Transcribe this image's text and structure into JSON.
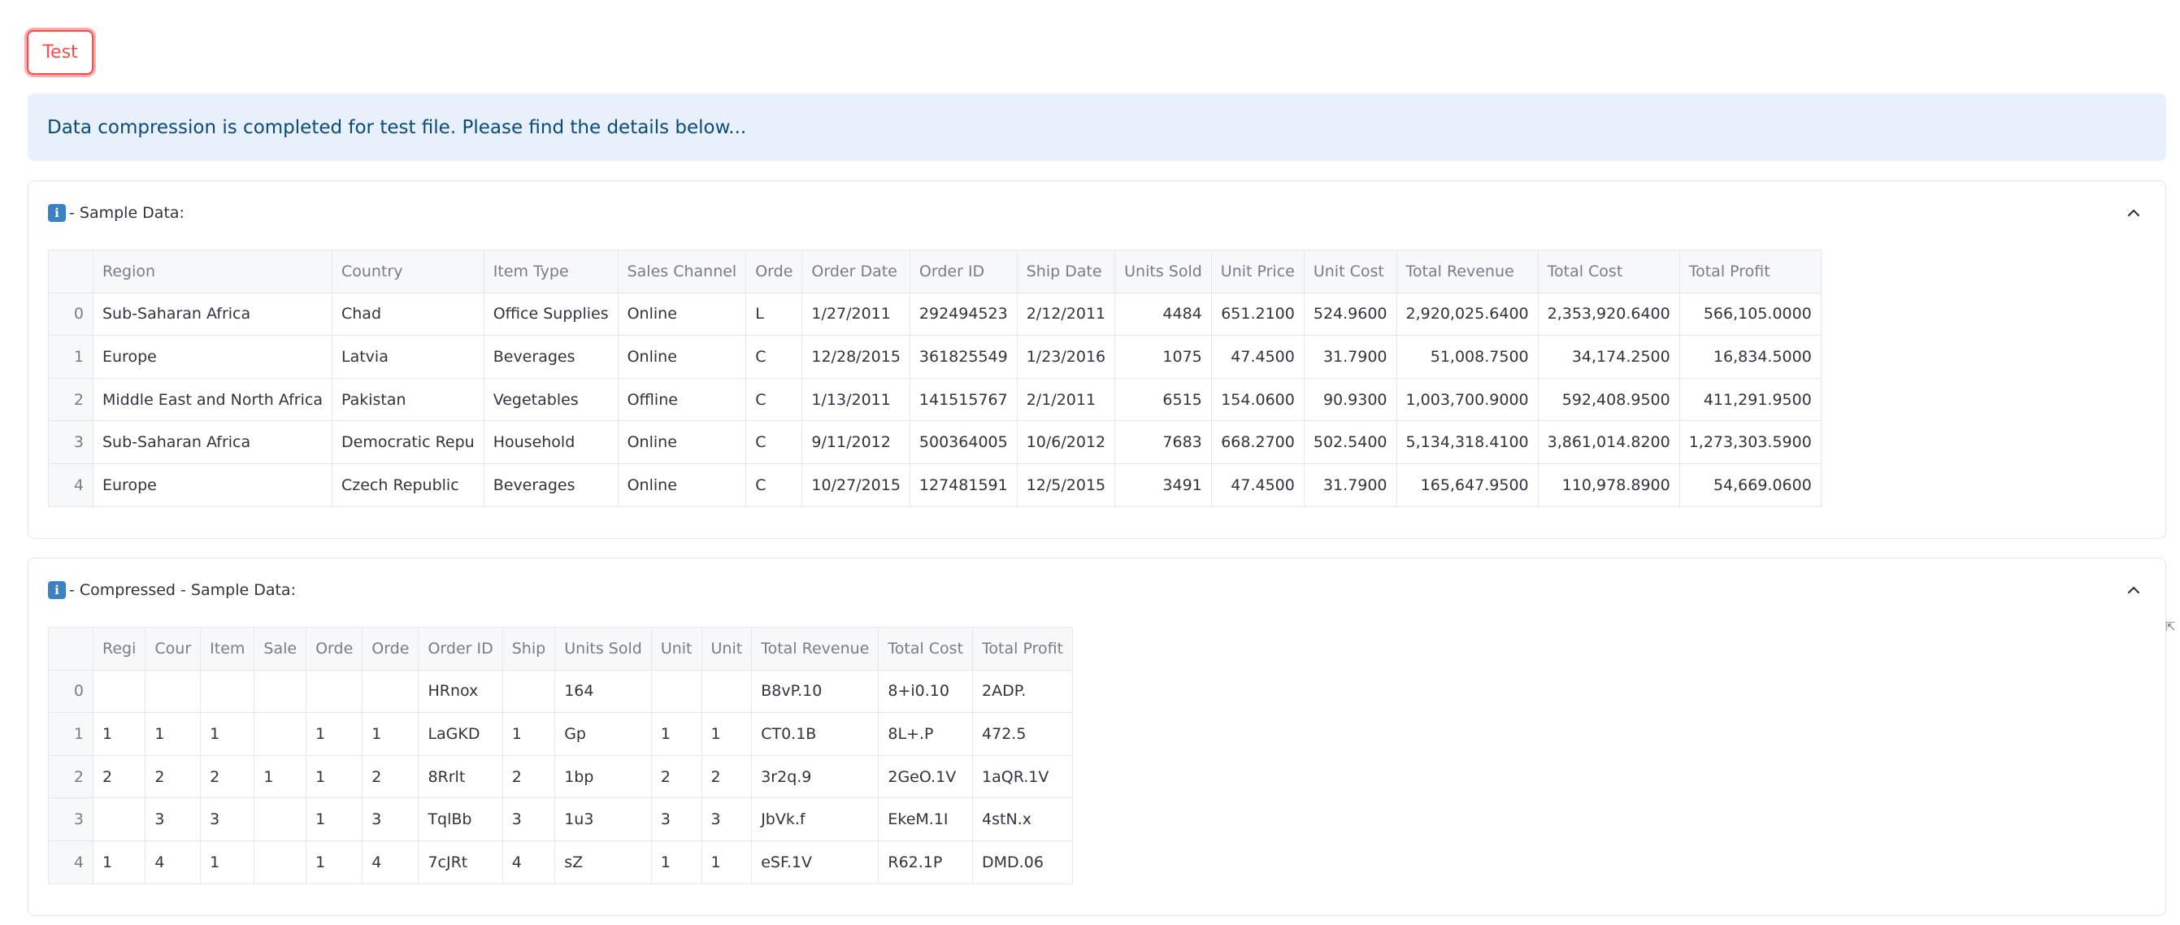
{
  "button": {
    "label": "Test"
  },
  "info": {
    "message": "Data compression is completed for test file. Please find the details below..."
  },
  "sample": {
    "title": "- Sample Data:",
    "columns": [
      "",
      "Region",
      "Country",
      "Item Type",
      "Sales Channel",
      "Orde",
      "Order Date",
      "Order ID",
      "Ship Date",
      "Units Sold",
      "Unit Price",
      "Unit Cost",
      "Total Revenue",
      "Total Cost",
      "Total Profit"
    ],
    "rows": [
      [
        "0",
        "Sub-Saharan Africa",
        "Chad",
        "Office Supplies",
        "Online",
        "L",
        "1/27/2011",
        "292494523",
        "2/12/2011",
        "4484",
        "651.2100",
        "524.9600",
        "2,920,025.6400",
        "2,353,920.6400",
        "566,105.0000"
      ],
      [
        "1",
        "Europe",
        "Latvia",
        "Beverages",
        "Online",
        "C",
        "12/28/2015",
        "361825549",
        "1/23/2016",
        "1075",
        "47.4500",
        "31.7900",
        "51,008.7500",
        "34,174.2500",
        "16,834.5000"
      ],
      [
        "2",
        "Middle East and North Africa",
        "Pakistan",
        "Vegetables",
        "Offline",
        "C",
        "1/13/2011",
        "141515767",
        "2/1/2011",
        "6515",
        "154.0600",
        "90.9300",
        "1,003,700.9000",
        "592,408.9500",
        "411,291.9500"
      ],
      [
        "3",
        "Sub-Saharan Africa",
        "Democratic Repu",
        "Household",
        "Online",
        "C",
        "9/11/2012",
        "500364005",
        "10/6/2012",
        "7683",
        "668.2700",
        "502.5400",
        "5,134,318.4100",
        "3,861,014.8200",
        "1,273,303.5900"
      ],
      [
        "4",
        "Europe",
        "Czech Republic",
        "Beverages",
        "Online",
        "C",
        "10/27/2015",
        "127481591",
        "12/5/2015",
        "3491",
        "47.4500",
        "31.7900",
        "165,647.9500",
        "110,978.8900",
        "54,669.0600"
      ]
    ]
  },
  "compressed": {
    "title": "- Compressed - Sample Data:",
    "columns": [
      "",
      "Regi",
      "Cour",
      "Item",
      "Sale",
      "Orde",
      "Orde",
      "Order ID",
      "Ship",
      "Units Sold",
      "Unit",
      "Unit",
      "Total Revenue",
      "Total Cost",
      "Total Profit"
    ],
    "rows": [
      [
        "0",
        "",
        "",
        "",
        "",
        "",
        "",
        "HRnox",
        "",
        "164",
        "",
        "",
        "B8vP.10",
        "8+i0.10",
        "2ADP."
      ],
      [
        "1",
        "1",
        "1",
        "1",
        "",
        "1",
        "1",
        "LaGKD",
        "1",
        "Gp",
        "1",
        "1",
        "CT0.1B",
        "8L+.P",
        "472.5"
      ],
      [
        "2",
        "2",
        "2",
        "2",
        "1",
        "1",
        "2",
        "8Rrlt",
        "2",
        "1bp",
        "2",
        "2",
        "3r2q.9",
        "2GeO.1V",
        "1aQR.1V"
      ],
      [
        "3",
        "",
        "3",
        "3",
        "",
        "1",
        "3",
        "TqlBb",
        "3",
        "1u3",
        "3",
        "3",
        "JbVk.f",
        "EkeM.1I",
        "4stN.x"
      ],
      [
        "4",
        "1",
        "4",
        "1",
        "",
        "1",
        "4",
        "7cJRt",
        "4",
        "sZ",
        "1",
        "1",
        "eSF.1V",
        "R62.1P",
        "DMD.06"
      ]
    ]
  },
  "icons": {
    "info": "information-icon",
    "collapse": "chevron-up-icon",
    "resize": "resize-arrow-icon"
  }
}
